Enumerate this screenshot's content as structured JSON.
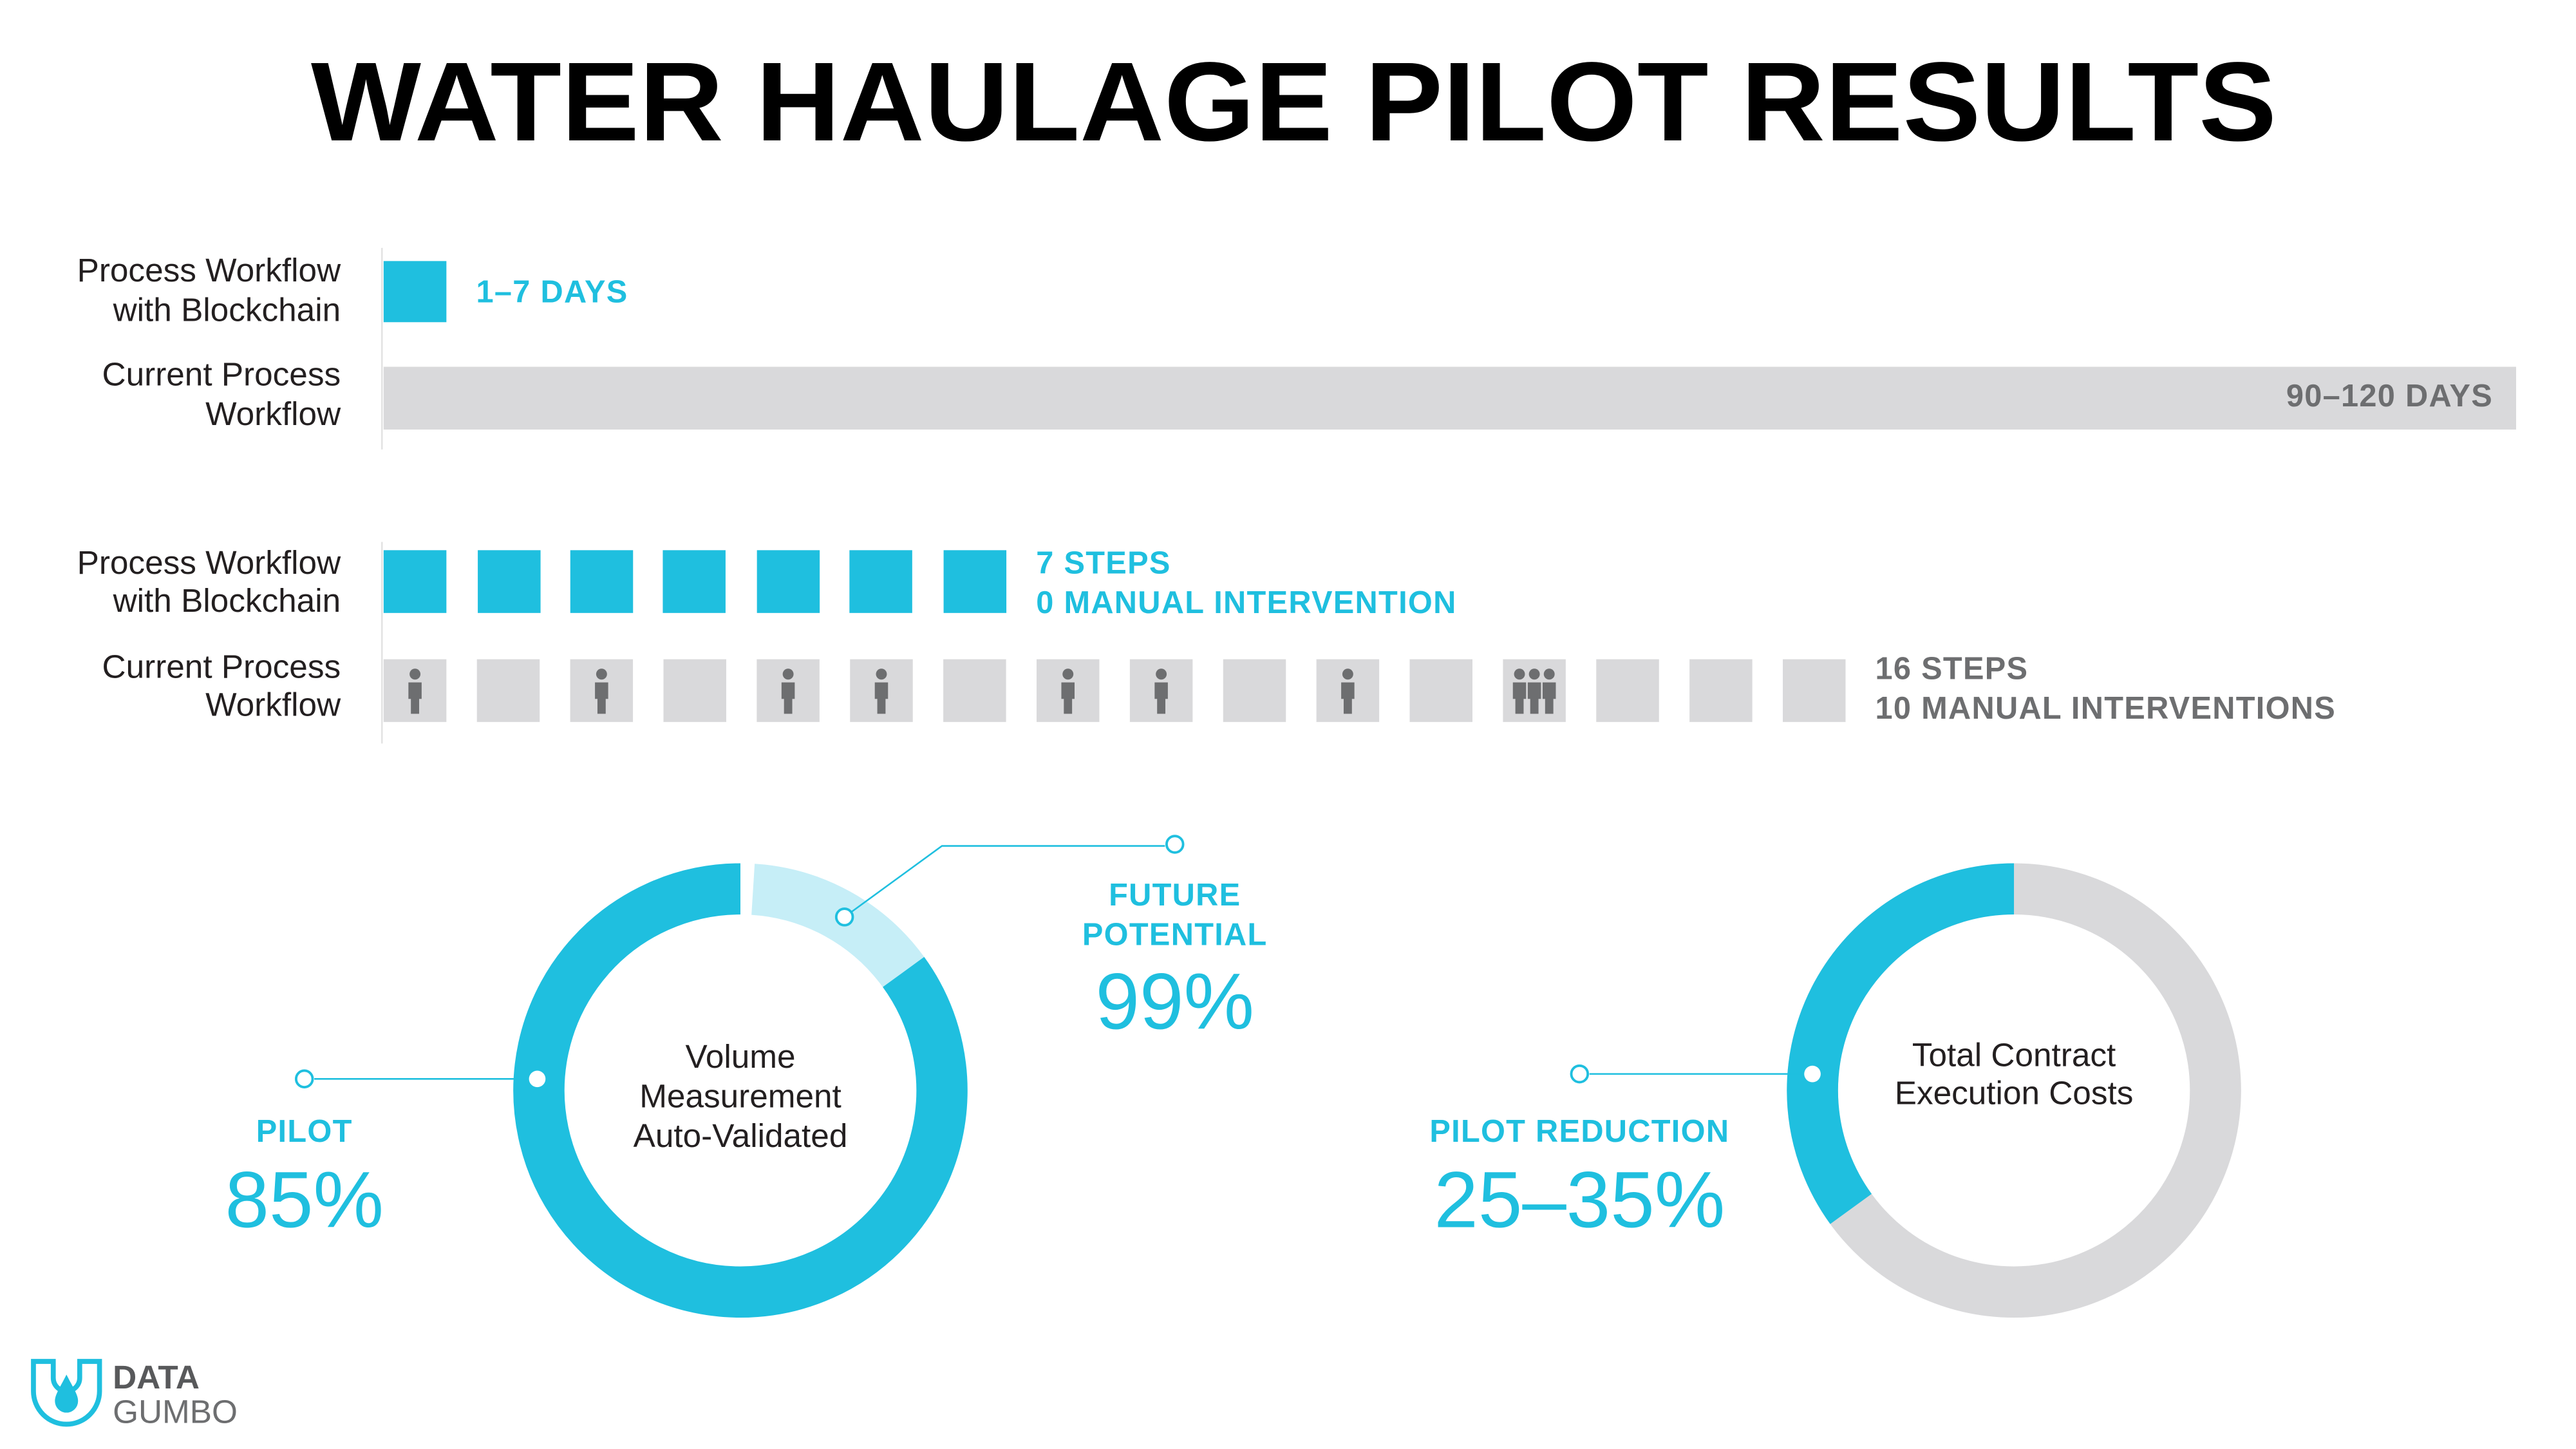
{
  "title": "WATER HAULAGE PILOT RESULTS",
  "timeline": {
    "rows": [
      {
        "label": [
          "Process Workflow",
          "with Blockchain"
        ],
        "value_label": "1–7 DAYS"
      },
      {
        "label": [
          "Current Process",
          "Workflow"
        ],
        "value_label": "90–120 DAYS"
      }
    ]
  },
  "steps": {
    "rows": [
      {
        "label": [
          "Process Workflow",
          "with Blockchain"
        ],
        "text": [
          "7 STEPS",
          "0 MANUAL INTERVENTION"
        ]
      },
      {
        "label": [
          "Current Process",
          "Workflow"
        ],
        "text": [
          "16 STEPS",
          "10 MANUAL INTERVENTIONS"
        ]
      }
    ]
  },
  "donuts": [
    {
      "center": [
        "Volume",
        "Measurement",
        "Auto-Validated"
      ],
      "pilot": {
        "label": "PILOT",
        "value": 85,
        "value_label": "85%"
      },
      "future": {
        "label": [
          "FUTURE",
          "POTENTIAL"
        ],
        "value": 99,
        "value_label": "99%"
      }
    },
    {
      "center": [
        "Total Contract",
        "Execution Costs"
      ],
      "reduction": {
        "label": "PILOT REDUCTION",
        "range": [
          25,
          35
        ],
        "value_label": "25–35%"
      }
    }
  ],
  "logo": [
    "DATA",
    "GUMBO"
  ]
}
